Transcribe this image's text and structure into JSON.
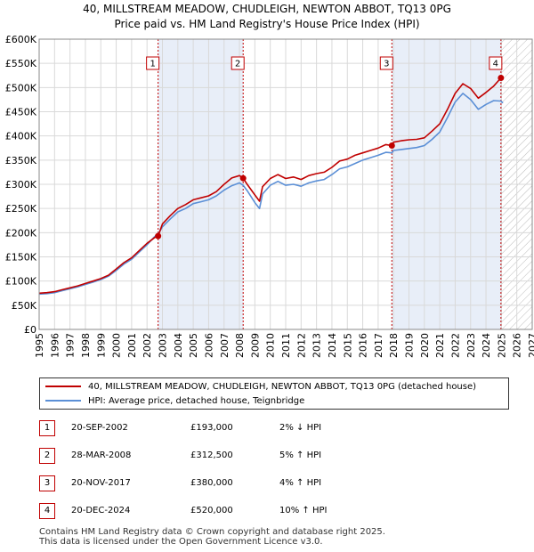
{
  "title_line1": "40, MILLSTREAM MEADOW, CHUDLEIGH, NEWTON ABBOT, TQ13 0PG",
  "title_line2": "Price paid vs. HM Land Registry's House Price Index (HPI)",
  "colors": {
    "property": "#c00000",
    "hpi": "#5b8fd6",
    "shade": "#e8eef8",
    "grid": "#d9d9d9"
  },
  "chart_data": {
    "type": "line",
    "ylim": [
      0,
      600000
    ],
    "xlim": [
      1995,
      2027
    ],
    "y_ticks": [
      0,
      50000,
      100000,
      150000,
      200000,
      250000,
      300000,
      350000,
      400000,
      450000,
      500000,
      550000,
      600000
    ],
    "y_tick_labels": [
      "£0",
      "£50K",
      "£100K",
      "£150K",
      "£200K",
      "£250K",
      "£300K",
      "£350K",
      "£400K",
      "£450K",
      "£500K",
      "£550K",
      "£600K"
    ],
    "x_ticks": [
      1995,
      1996,
      1997,
      1998,
      1999,
      2000,
      2001,
      2002,
      2003,
      2004,
      2005,
      2006,
      2007,
      2008,
      2009,
      2010,
      2011,
      2012,
      2013,
      2014,
      2015,
      2016,
      2017,
      2018,
      2019,
      2020,
      2021,
      2022,
      2023,
      2024,
      2025,
      2026,
      2027
    ],
    "x_tick_labels": [
      "1995",
      "1996",
      "1997",
      "1998",
      "1999",
      "2000",
      "2001",
      "2002",
      "2003",
      "2004",
      "2005",
      "2006",
      "2007",
      "2008",
      "2009",
      "2010",
      "2011",
      "2012",
      "2013",
      "2014",
      "2015",
      "2016",
      "2017",
      "2018",
      "2019",
      "2020",
      "2021",
      "2022",
      "2023",
      "2024",
      "2025",
      "2026",
      "2027"
    ],
    "shaded_periods": [
      [
        2002.72,
        2008.24
      ],
      [
        2017.89,
        2024.97
      ]
    ],
    "future_hatch_start": 2025.0,
    "series": [
      {
        "name": "40, MILLSTREAM MEADOW, CHUDLEIGH, NEWTON ABBOT, TQ13 0PG (detached house)",
        "x": [
          1995.0,
          1995.5,
          1996.0,
          1996.5,
          1997.0,
          1997.5,
          1998.0,
          1998.5,
          1999.0,
          1999.5,
          2000.0,
          2000.5,
          2001.0,
          2001.5,
          2002.0,
          2002.5,
          2002.72,
          2003.0,
          2003.5,
          2004.0,
          2004.5,
          2005.0,
          2005.5,
          2006.0,
          2006.5,
          2007.0,
          2007.5,
          2008.0,
          2008.24,
          2008.5,
          2009.0,
          2009.3,
          2009.5,
          2010.0,
          2010.5,
          2011.0,
          2011.5,
          2012.0,
          2012.5,
          2013.0,
          2013.5,
          2014.0,
          2014.5,
          2015.0,
          2015.5,
          2016.0,
          2016.5,
          2017.0,
          2017.5,
          2017.89,
          2018.0,
          2018.5,
          2019.0,
          2019.5,
          2020.0,
          2020.5,
          2021.0,
          2021.5,
          2022.0,
          2022.5,
          2023.0,
          2023.5,
          2024.0,
          2024.5,
          2024.97,
          2025.1
        ],
        "values": [
          75000,
          76000,
          78000,
          82000,
          86000,
          90000,
          95000,
          100000,
          105000,
          112000,
          125000,
          138000,
          148000,
          163000,
          178000,
          190000,
          193000,
          218000,
          235000,
          250000,
          258000,
          268000,
          272000,
          276000,
          285000,
          300000,
          313000,
          318000,
          312500,
          300000,
          278000,
          265000,
          295000,
          312000,
          320000,
          312000,
          315000,
          310000,
          318000,
          322000,
          325000,
          335000,
          348000,
          352000,
          360000,
          365000,
          370000,
          375000,
          382000,
          380000,
          387000,
          390000,
          392000,
          393000,
          396000,
          410000,
          425000,
          455000,
          488000,
          508000,
          498000,
          478000,
          490000,
          503000,
          520000,
          522000
        ]
      },
      {
        "name": "HPI: Average price, detached house, Teignbridge",
        "x": [
          1995.0,
          1995.5,
          1996.0,
          1996.5,
          1997.0,
          1997.5,
          1998.0,
          1998.5,
          1999.0,
          1999.5,
          2000.0,
          2000.5,
          2001.0,
          2001.5,
          2002.0,
          2002.5,
          2002.72,
          2003.0,
          2003.5,
          2004.0,
          2004.5,
          2005.0,
          2005.5,
          2006.0,
          2006.5,
          2007.0,
          2007.5,
          2008.0,
          2008.24,
          2008.5,
          2009.0,
          2009.3,
          2009.5,
          2010.0,
          2010.5,
          2011.0,
          2011.5,
          2012.0,
          2012.5,
          2013.0,
          2013.5,
          2014.0,
          2014.5,
          2015.0,
          2015.5,
          2016.0,
          2016.5,
          2017.0,
          2017.5,
          2017.89,
          2018.0,
          2018.5,
          2019.0,
          2019.5,
          2020.0,
          2020.5,
          2021.0,
          2021.5,
          2022.0,
          2022.5,
          2023.0,
          2023.5,
          2024.0,
          2024.5,
          2024.97,
          2025.1
        ],
        "values": [
          73000,
          74000,
          76000,
          80000,
          84000,
          88000,
          93000,
          98000,
          103000,
          110000,
          122000,
          135000,
          145000,
          160000,
          175000,
          192000,
          197000,
          212000,
          228000,
          243000,
          250000,
          260000,
          264000,
          268000,
          276000,
          288000,
          297000,
          303000,
          298000,
          287000,
          262000,
          250000,
          280000,
          298000,
          306000,
          298000,
          300000,
          296000,
          303000,
          307000,
          310000,
          320000,
          332000,
          336000,
          343000,
          350000,
          355000,
          360000,
          366000,
          365000,
          370000,
          372000,
          374000,
          376000,
          380000,
          393000,
          408000,
          438000,
          470000,
          488000,
          475000,
          455000,
          465000,
          473000,
          472000,
          468000
        ]
      }
    ],
    "sales": [
      {
        "label": "1",
        "x": 2002.72,
        "value": 193000
      },
      {
        "label": "2",
        "x": 2008.24,
        "value": 312500
      },
      {
        "label": "3",
        "x": 2017.89,
        "value": 380000
      },
      {
        "label": "4",
        "x": 2024.97,
        "value": 520000
      }
    ]
  },
  "legend": {
    "property": "40, MILLSTREAM MEADOW, CHUDLEIGH, NEWTON ABBOT, TQ13 0PG (detached house)",
    "hpi": "HPI: Average price, detached house, Teignbridge"
  },
  "sales_table": [
    {
      "num": "1",
      "date": "20-SEP-2002",
      "price": "£193,000",
      "hpi": "2% ↓ HPI"
    },
    {
      "num": "2",
      "date": "28-MAR-2008",
      "price": "£312,500",
      "hpi": "5% ↑ HPI"
    },
    {
      "num": "3",
      "date": "20-NOV-2017",
      "price": "£380,000",
      "hpi": "4% ↑ HPI"
    },
    {
      "num": "4",
      "date": "20-DEC-2024",
      "price": "£520,000",
      "hpi": "10% ↑ HPI"
    }
  ],
  "footer_line1": "Contains HM Land Registry data © Crown copyright and database right 2025.",
  "footer_line2": "This data is licensed under the Open Government Licence v3.0."
}
